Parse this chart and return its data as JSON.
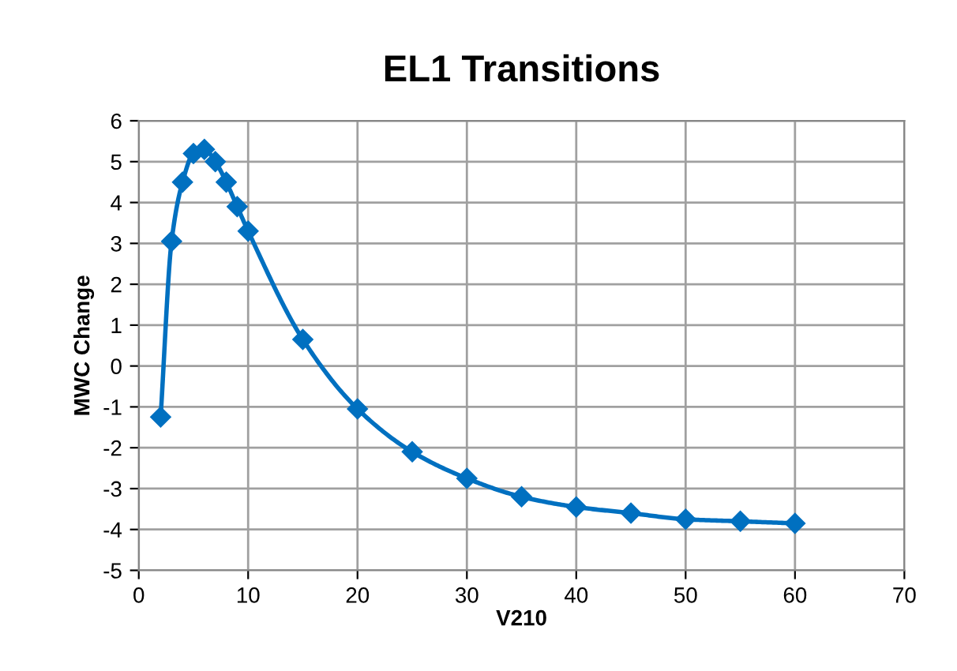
{
  "chart_data": {
    "type": "line",
    "title": "EL1 Transitions",
    "xlabel": "V210",
    "ylabel": "MWC Change",
    "x": [
      2,
      3,
      4,
      5,
      6,
      7,
      8,
      9,
      10,
      15,
      20,
      25,
      30,
      35,
      40,
      45,
      50,
      55,
      60
    ],
    "series": [
      {
        "color": "#0070c0",
        "values": [
          -1.25,
          3.05,
          4.5,
          5.2,
          5.3,
          5.0,
          4.5,
          3.9,
          3.3,
          0.65,
          -1.05,
          -2.1,
          -2.75,
          -3.2,
          -3.45,
          -3.6,
          -3.75,
          -3.8,
          -3.85
        ]
      }
    ],
    "xlim": [
      0,
      70
    ],
    "xticks": [
      0,
      10,
      20,
      30,
      40,
      50,
      60,
      70
    ],
    "ylim": [
      -5,
      6
    ],
    "yticks": [
      -5,
      -4,
      -3,
      -2,
      -1,
      0,
      1,
      2,
      3,
      4,
      5,
      6
    ],
    "grid": true,
    "legend": false,
    "marker": "diamond",
    "line_style": "solid"
  }
}
